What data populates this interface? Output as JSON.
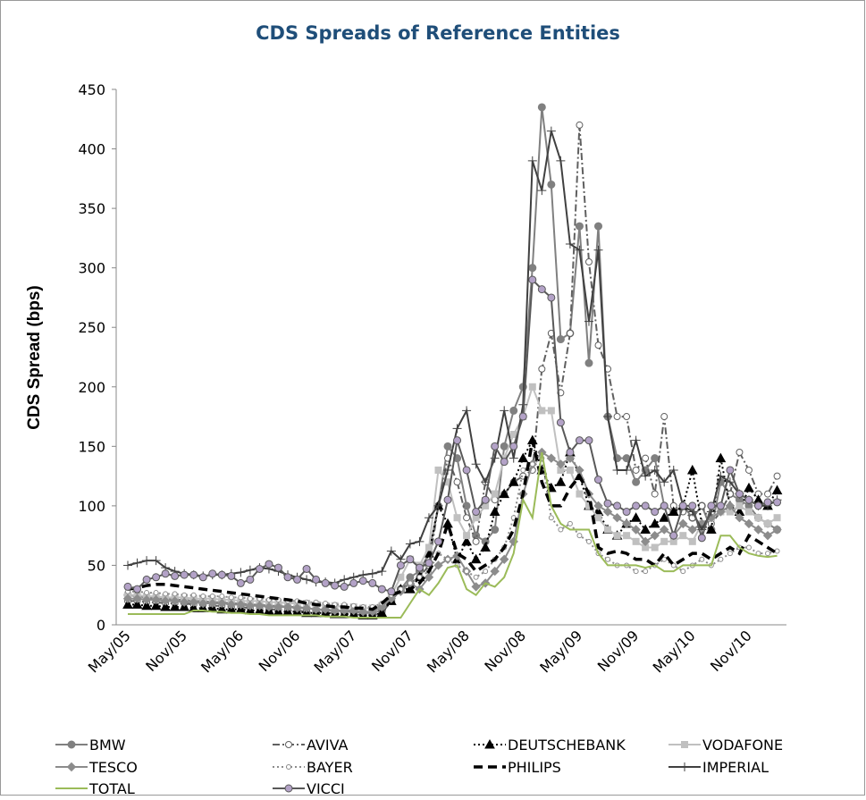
{
  "chart_data": {
    "type": "line",
    "title": "CDS Spreads of Reference Entities",
    "y_label": "CDS Spread (bps)",
    "categories": [
      "May/05",
      null,
      null,
      null,
      null,
      null,
      "Nov/05",
      null,
      null,
      null,
      null,
      null,
      "May/06",
      null,
      null,
      null,
      null,
      null,
      "Nov/06",
      null,
      null,
      null,
      null,
      null,
      "May/07",
      null,
      null,
      null,
      null,
      null,
      "Nov/07",
      null,
      null,
      null,
      null,
      null,
      "May/08",
      null,
      null,
      null,
      null,
      null,
      "Nov/08",
      null,
      null,
      null,
      null,
      null,
      "May/09",
      null,
      null,
      null,
      null,
      null,
      "Nov/09",
      null,
      null,
      null,
      null,
      null,
      "May/10",
      null,
      null,
      null,
      null,
      null,
      "Nov/10",
      null,
      null,
      null
    ],
    "ylim": [
      0,
      450
    ],
    "yticks": [
      0,
      50,
      100,
      150,
      200,
      250,
      300,
      350,
      400,
      450
    ],
    "series": [
      {
        "name": "BMW",
        "color": "#808080",
        "dash": "solid",
        "marker": "circle",
        "values": [
          25,
          24,
          23,
          22,
          22,
          21,
          21,
          20,
          20,
          19,
          19,
          18,
          18,
          17,
          17,
          16,
          16,
          15,
          15,
          14,
          13,
          12,
          12,
          11,
          11,
          10,
          10,
          12,
          20,
          30,
          40,
          45,
          60,
          100,
          150,
          140,
          100,
          75,
          70,
          80,
          150,
          180,
          200,
          300,
          435,
          370,
          240,
          245,
          335,
          220,
          335,
          175,
          140,
          140,
          120,
          130,
          140,
          100,
          95,
          100,
          90,
          100,
          80,
          120,
          110,
          105,
          100,
          90,
          85,
          80
        ]
      },
      {
        "name": "AVIVA",
        "color": "#606060",
        "dash": "dashdot",
        "marker": "open-circle",
        "values": [
          20,
          20,
          19,
          19,
          18,
          18,
          18,
          17,
          17,
          16,
          16,
          15,
          15,
          14,
          14,
          13,
          13,
          12,
          12,
          11,
          11,
          10,
          10,
          9,
          9,
          8,
          8,
          10,
          20,
          30,
          35,
          40,
          50,
          100,
          140,
          120,
          90,
          70,
          120,
          105,
          110,
          120,
          125,
          130,
          215,
          245,
          195,
          245,
          420,
          305,
          235,
          215,
          175,
          175,
          130,
          140,
          110,
          175,
          100,
          95,
          90,
          100,
          85,
          95,
          110,
          145,
          130,
          110,
          110,
          125
        ]
      },
      {
        "name": "DEUTSCHEBANK",
        "color": "#000000",
        "dash": "dotted",
        "marker": "triangle",
        "values": [
          17,
          17,
          16,
          16,
          15,
          15,
          15,
          14,
          14,
          14,
          13,
          13,
          13,
          12,
          12,
          12,
          11,
          11,
          11,
          10,
          10,
          10,
          9,
          9,
          9,
          8,
          8,
          10,
          20,
          30,
          30,
          40,
          60,
          100,
          85,
          55,
          70,
          55,
          65,
          95,
          110,
          120,
          140,
          155,
          130,
          115,
          120,
          145,
          125,
          100,
          95,
          80,
          75,
          85,
          90,
          80,
          85,
          90,
          95,
          100,
          130,
          85,
          80,
          140,
          100,
          95,
          115,
          105,
          100,
          113
        ]
      },
      {
        "name": "VODAFONE",
        "color": "#c0c0c0",
        "dash": "solid",
        "marker": "square",
        "values": [
          25,
          25,
          24,
          24,
          23,
          23,
          23,
          22,
          22,
          22,
          21,
          21,
          20,
          20,
          20,
          19,
          19,
          18,
          18,
          18,
          17,
          16,
          16,
          15,
          15,
          14,
          14,
          16,
          25,
          40,
          55,
          50,
          65,
          130,
          120,
          90,
          75,
          90,
          100,
          110,
          140,
          160,
          175,
          200,
          180,
          180,
          130,
          130,
          110,
          100,
          90,
          80,
          75,
          75,
          70,
          65,
          65,
          70,
          70,
          75,
          70,
          85,
          90,
          95,
          95,
          100,
          95,
          90,
          85,
          90
        ]
      },
      {
        "name": "TESCO",
        "color": "#8c8c8c",
        "dash": "solid",
        "marker": "diamond",
        "values": [
          22,
          22,
          21,
          21,
          20,
          20,
          19,
          19,
          18,
          18,
          18,
          17,
          17,
          16,
          16,
          15,
          15,
          15,
          14,
          14,
          13,
          13,
          12,
          12,
          12,
          11,
          11,
          15,
          22,
          28,
          35,
          30,
          40,
          50,
          55,
          58,
          45,
          32,
          35,
          45,
          55,
          70,
          110,
          135,
          145,
          140,
          135,
          140,
          130,
          110,
          100,
          95,
          90,
          85,
          80,
          70,
          75,
          80,
          75,
          85,
          80,
          85,
          90,
          95,
          100,
          90,
          85,
          80,
          75,
          80
        ]
      },
      {
        "name": "BAYER",
        "color": "#8c8c8c",
        "dash": "dotted",
        "marker": "small-circle",
        "values": [
          28,
          28,
          27,
          27,
          26,
          26,
          25,
          25,
          24,
          24,
          24,
          23,
          23,
          22,
          22,
          21,
          21,
          20,
          20,
          19,
          19,
          18,
          17,
          17,
          16,
          15,
          15,
          18,
          25,
          30,
          35,
          40,
          45,
          60,
          55,
          50,
          45,
          40,
          45,
          55,
          65,
          90,
          130,
          135,
          140,
          90,
          80,
          85,
          75,
          70,
          60,
          55,
          50,
          50,
          45,
          45,
          50,
          55,
          50,
          45,
          50,
          55,
          50,
          55,
          60,
          65,
          65,
          60,
          60,
          62
        ]
      },
      {
        "name": "PHILIPS",
        "color": "#000000",
        "dash": "dashed",
        "marker": "none",
        "values": [
          30,
          31,
          33,
          34,
          34,
          33,
          32,
          31,
          30,
          29,
          28,
          27,
          26,
          25,
          24,
          23,
          22,
          21,
          20,
          18,
          17,
          16,
          15,
          15,
          14,
          14,
          13,
          18,
          25,
          28,
          30,
          35,
          45,
          60,
          85,
          60,
          55,
          45,
          50,
          55,
          65,
          80,
          110,
          155,
          120,
          100,
          100,
          115,
          125,
          110,
          65,
          60,
          62,
          60,
          55,
          55,
          50,
          60,
          50,
          55,
          60,
          60,
          55,
          60,
          65,
          60,
          75,
          70,
          65,
          60
        ]
      },
      {
        "name": "IMPERIAL",
        "color": "#404040",
        "dash": "solid",
        "marker": "plus",
        "values": [
          50,
          52,
          54,
          54,
          48,
          45,
          43,
          42,
          41,
          42,
          42,
          43,
          44,
          46,
          48,
          47,
          45,
          42,
          40,
          38,
          36,
          36,
          35,
          38,
          40,
          42,
          43,
          45,
          62,
          55,
          68,
          70,
          90,
          100,
          130,
          165,
          180,
          135,
          120,
          140,
          180,
          140,
          185,
          390,
          365,
          415,
          390,
          320,
          315,
          255,
          315,
          175,
          130,
          130,
          155,
          125,
          130,
          120,
          130,
          100,
          95,
          80,
          95,
          125,
          120,
          110,
          105,
          100,
          100,
          105
        ]
      },
      {
        "name": "TOTAL",
        "color": "#9bbb59",
        "dash": "solid",
        "marker": "none",
        "values": [
          9,
          9,
          9,
          9,
          9,
          9,
          9,
          12,
          12,
          11,
          11,
          10,
          10,
          9,
          9,
          8,
          8,
          8,
          8,
          8,
          8,
          7,
          7,
          7,
          6,
          6,
          6,
          6,
          6,
          6,
          18,
          30,
          25,
          35,
          48,
          50,
          30,
          25,
          35,
          32,
          40,
          60,
          105,
          90,
          145,
          100,
          85,
          80,
          80,
          80,
          60,
          50,
          50,
          50,
          50,
          48,
          50,
          45,
          45,
          50,
          50,
          50,
          50,
          75,
          75,
          65,
          60,
          58,
          57,
          58
        ]
      },
      {
        "name": "VICCI",
        "color": "#595959",
        "fill": "#b3a2c7",
        "dash": "solid",
        "marker": "circle",
        "values": [
          32,
          30,
          38,
          40,
          43,
          41,
          42,
          42,
          40,
          43,
          42,
          41,
          35,
          38,
          47,
          51,
          48,
          40,
          38,
          47,
          38,
          35,
          33,
          32,
          35,
          37,
          35,
          30,
          28,
          50,
          55,
          48,
          52,
          70,
          105,
          155,
          130,
          95,
          105,
          150,
          137,
          150,
          175,
          290,
          282,
          275,
          170,
          145,
          155,
          155,
          122,
          102,
          100,
          95,
          100,
          100,
          95,
          100,
          75,
          100,
          100,
          73,
          100,
          100,
          130,
          110,
          105,
          100,
          103,
          103
        ]
      }
    ]
  }
}
